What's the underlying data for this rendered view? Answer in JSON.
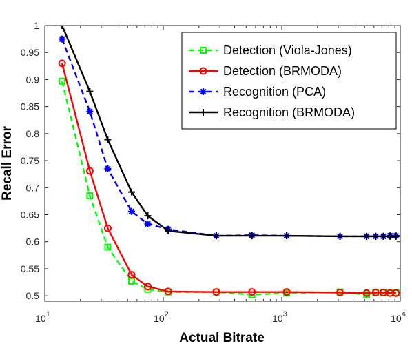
{
  "chart_data": {
    "type": "line",
    "xlabel": "Actual Bitrate",
    "ylabel": "Recall Error",
    "xscale": "log",
    "xlim": [
      10,
      10000
    ],
    "ylim": [
      0.49,
      1.0
    ],
    "x_tick_labels": [
      {
        "base": "10",
        "exp": "1"
      },
      {
        "base": "10",
        "exp": "2"
      },
      {
        "base": "10",
        "exp": "3"
      },
      {
        "base": "10",
        "exp": "4"
      }
    ],
    "y_ticks": [
      "0.5",
      "0.55",
      "0.6",
      "0.65",
      "0.7",
      "0.75",
      "0.8",
      "0.85",
      "0.9",
      "0.95",
      "1"
    ],
    "grid": false,
    "legend_position": "top-right",
    "series": [
      {
        "name": "Detection (Viola-Jones)",
        "color": "#00ff00",
        "line": "dashed",
        "marker": "square",
        "x": [
          14,
          24,
          34,
          54,
          74,
          110,
          280,
          560,
          1100,
          3100,
          5200,
          6200,
          7200,
          8200,
          9200
        ],
        "y": [
          0.897,
          0.685,
          0.59,
          0.527,
          0.512,
          0.507,
          0.507,
          0.502,
          0.505,
          0.507,
          0.502,
          0.506,
          0.506,
          0.505,
          0.506
        ]
      },
      {
        "name": "Detection (BRMODA)",
        "color": "#ff0000",
        "line": "solid",
        "marker": "circle",
        "x": [
          14,
          24,
          34,
          54,
          74,
          110,
          280,
          560,
          1100,
          3100,
          5200,
          6200,
          7200,
          8200,
          9200
        ],
        "y": [
          0.93,
          0.731,
          0.625,
          0.539,
          0.517,
          0.508,
          0.507,
          0.507,
          0.507,
          0.506,
          0.505,
          0.506,
          0.506,
          0.505,
          0.505
        ]
      },
      {
        "name": "Recognition (PCA)",
        "color": "#0000ff",
        "line": "dashed",
        "marker": "asterisk",
        "x": [
          14,
          24,
          34,
          54,
          74,
          110,
          280,
          560,
          1100,
          3100,
          5200,
          6200,
          7200,
          8200,
          9200
        ],
        "y": [
          0.975,
          0.841,
          0.735,
          0.656,
          0.633,
          0.623,
          0.611,
          0.612,
          0.611,
          0.61,
          0.61,
          0.61,
          0.61,
          0.611,
          0.611
        ]
      },
      {
        "name": "Recognition (BRMODA)",
        "color": "#000000",
        "line": "solid",
        "marker": "plus",
        "x": [
          14,
          24,
          34,
          54,
          74,
          110,
          280,
          560,
          1100,
          3100,
          5200,
          6200,
          7200,
          8200,
          9200
        ],
        "y": [
          1.0,
          0.878,
          0.789,
          0.692,
          0.648,
          0.62,
          0.611,
          0.611,
          0.611,
          0.61,
          0.61,
          0.61,
          0.61,
          0.61,
          0.61
        ]
      }
    ]
  }
}
